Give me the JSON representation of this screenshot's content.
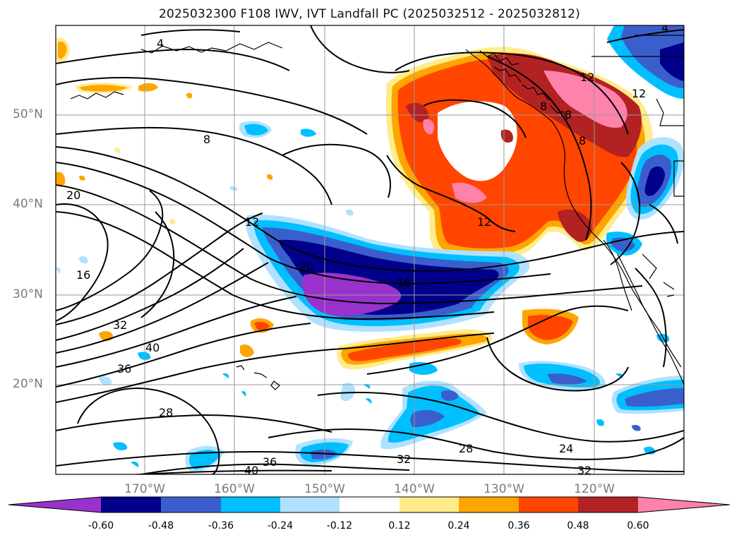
{
  "title": "2025032300 F108 IWV, IVT Landfall PC (2025032512 - 2025032812)",
  "lat_labels": [
    "50°N",
    "40°N",
    "30°N",
    "20°N"
  ],
  "lon_labels": [
    "170°W",
    "160°W",
    "150°W",
    "140°W",
    "130°W",
    "120°W"
  ],
  "contour_labels": [
    "4",
    "4",
    "8",
    "8",
    "8",
    "8",
    "12",
    "12",
    "12",
    "12",
    "16",
    "16",
    "20",
    "20",
    "28",
    "28",
    "24",
    "32",
    "32",
    "32",
    "36",
    "36",
    "40",
    "40"
  ],
  "colorbar": {
    "ticks": [
      "-0.60",
      "-0.48",
      "-0.36",
      "-0.24",
      "-0.12",
      "0.12",
      "0.24",
      "0.36",
      "0.48",
      "0.60"
    ],
    "colors": {
      "lt_neg060": "#9932cc",
      "neg060_neg048": "#00008b",
      "neg048_neg036": "#3a5fcd",
      "neg036_neg024": "#00bfff",
      "neg024_neg012": "#b0e2ff",
      "neg012_012": "#ffffff",
      "p012_p024": "#ffec8b",
      "p024_p036": "#ffa500",
      "p036_p048": "#ff4500",
      "p048_p060": "#b22222",
      "gt_p060": "#ff82ab"
    }
  }
}
